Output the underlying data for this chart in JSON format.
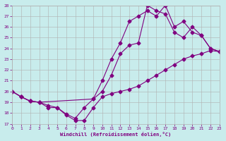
{
  "xlabel": "Windchill (Refroidissement éolien,°C)",
  "bg_color": "#c8ecec",
  "line_color": "#800080",
  "grid_color": "#b0b0b0",
  "xlim": [
    0,
    23
  ],
  "ylim": [
    17,
    28
  ],
  "xticks": [
    0,
    1,
    2,
    3,
    4,
    5,
    6,
    7,
    8,
    9,
    10,
    11,
    12,
    13,
    14,
    15,
    16,
    17,
    18,
    19,
    20,
    21,
    22,
    23
  ],
  "yticks": [
    17,
    18,
    19,
    20,
    21,
    22,
    23,
    24,
    25,
    26,
    27,
    28
  ],
  "curve1_x": [
    0,
    1,
    2,
    3,
    4,
    5,
    6,
    7,
    8,
    9,
    10,
    11,
    12,
    13,
    14,
    15,
    16,
    17,
    18,
    19,
    20,
    21,
    22,
    23
  ],
  "curve1_y": [
    20.0,
    19.5,
    19.1,
    19.0,
    18.5,
    18.5,
    17.8,
    17.3,
    17.3,
    18.5,
    19.5,
    19.8,
    20.0,
    20.2,
    20.5,
    21.0,
    21.5,
    22.0,
    22.5,
    23.0,
    23.3,
    23.5,
    23.8,
    23.7
  ],
  "curve2_x": [
    0,
    1,
    2,
    3,
    4,
    5,
    6,
    7,
    8,
    9,
    10,
    11,
    12,
    13,
    14,
    15,
    16,
    17,
    18,
    19,
    20,
    21,
    22,
    23
  ],
  "curve2_y": [
    20.0,
    19.5,
    19.1,
    19.0,
    18.7,
    18.5,
    17.9,
    17.5,
    18.5,
    19.3,
    21.0,
    23.0,
    24.5,
    26.5,
    27.0,
    27.5,
    27.0,
    28.0,
    26.0,
    26.5,
    25.5,
    25.2,
    24.0,
    23.7
  ],
  "curve3_x": [
    0,
    1,
    2,
    3,
    9,
    10,
    11,
    12,
    13,
    14,
    15,
    16,
    17,
    18,
    19,
    20,
    21,
    22,
    23
  ],
  "curve3_y": [
    20.0,
    19.5,
    19.1,
    19.0,
    19.3,
    20.0,
    21.5,
    23.5,
    24.3,
    24.5,
    28.0,
    27.5,
    27.2,
    25.5,
    25.0,
    26.0,
    25.2,
    24.0,
    23.7
  ]
}
